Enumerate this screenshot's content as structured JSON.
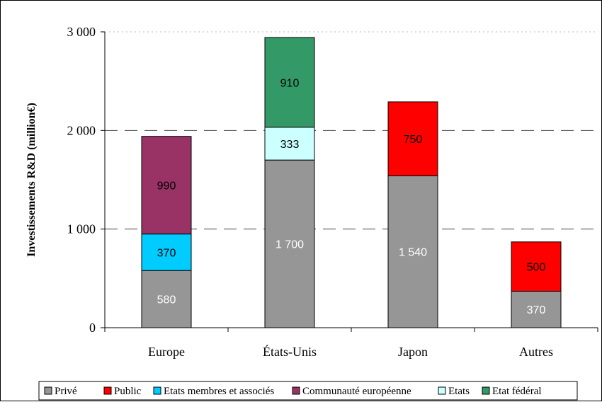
{
  "chart_data": {
    "type": "bar",
    "stacked": true,
    "title": "",
    "xlabel": "",
    "ylabel": "Investissements R&D (million€)",
    "ylim": [
      0,
      3000
    ],
    "yticks": [
      0,
      1000,
      2000,
      3000
    ],
    "ytick_labels": [
      "0",
      "1 000",
      "2 000",
      "3 000"
    ],
    "grid": "dashed horizontal",
    "legend_position": "bottom",
    "categories": [
      "Europe",
      "États-Unis",
      "Japon",
      "Autres"
    ],
    "series": [
      {
        "name": "Privé",
        "color": "#969696",
        "label_color": "#ffffff",
        "values": [
          580,
          1700,
          1540,
          370
        ],
        "labels": [
          "580",
          "1 700",
          "1 540",
          "370"
        ]
      },
      {
        "name": "Public",
        "color": "#ff0000",
        "label_color": "#000000",
        "values": [
          0,
          0,
          750,
          500
        ],
        "labels": [
          "",
          "",
          "750",
          "500"
        ]
      },
      {
        "name": "Etats membres et associés",
        "color": "#00ccff",
        "label_color": "#000000",
        "values": [
          370,
          0,
          0,
          0
        ],
        "labels": [
          "370",
          "",
          "",
          ""
        ]
      },
      {
        "name": "Communauté européenne",
        "color": "#993366",
        "label_color": "#000000",
        "values": [
          990,
          0,
          0,
          0
        ],
        "labels": [
          "990",
          "",
          "",
          ""
        ]
      },
      {
        "name": "Etats",
        "color": "#ccffff",
        "label_color": "#000000",
        "values": [
          0,
          333,
          0,
          0
        ],
        "labels": [
          "",
          "333",
          "",
          ""
        ]
      },
      {
        "name": "Etat fédéral",
        "color": "#339966",
        "label_color": "#000000",
        "values": [
          0,
          910,
          0,
          0
        ],
        "labels": [
          "",
          "910",
          "",
          ""
        ]
      }
    ]
  }
}
